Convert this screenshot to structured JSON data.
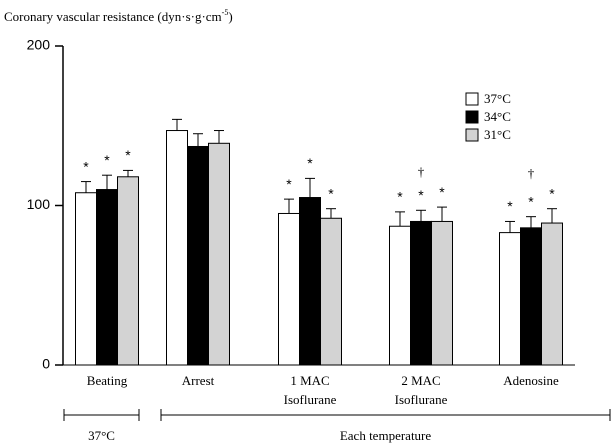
{
  "chart_data": {
    "type": "bar",
    "ylabel": {
      "text": "Coronary vascular resistance (dyn·s·g·cm",
      "superscript": "-5",
      "suffix": ")"
    },
    "categories": [
      [
        "Beating"
      ],
      [
        "Arrest"
      ],
      [
        "1 MAC",
        "Isoflurane"
      ],
      [
        "2 MAC",
        "Isoflurane"
      ],
      [
        "Adenosine"
      ]
    ],
    "series": [
      {
        "name": "37°C",
        "color": "#ffffff",
        "values": [
          108,
          147,
          95,
          87,
          83
        ],
        "errors": [
          7,
          7,
          9,
          9,
          7
        ],
        "marks": [
          "*",
          null,
          "*",
          "*",
          "*"
        ]
      },
      {
        "name": "34°C",
        "color": "#000000",
        "values": [
          110,
          137,
          105,
          90,
          86
        ],
        "errors": [
          9,
          8,
          12,
          7,
          7
        ],
        "marks": [
          "*",
          null,
          "*",
          "*",
          "*"
        ]
      },
      {
        "name": "31°C",
        "color": "#d3d3d3",
        "values": [
          118,
          139,
          92,
          90,
          89
        ],
        "errors": [
          4,
          8,
          6,
          9,
          9
        ],
        "marks": [
          "*",
          null,
          "*",
          "*",
          "*"
        ]
      }
    ],
    "group_marks": [
      null,
      null,
      null,
      "†",
      "†"
    ],
    "brackets": [
      "37°C",
      "Each temperature"
    ],
    "ylim": [
      0,
      200
    ],
    "yticks": [
      0,
      100,
      200
    ]
  }
}
